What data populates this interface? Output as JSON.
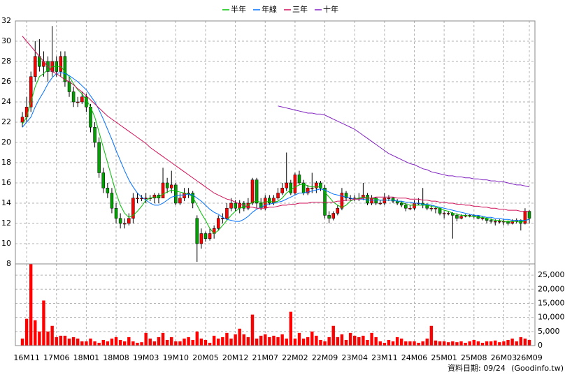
{
  "chart_data": [
    {
      "type": "candlestick",
      "up_color": "#ff0000",
      "down_color": "#00a000",
      "grid": true,
      "ylim": [
        8,
        32
      ],
      "yticks": [
        8,
        10,
        12,
        14,
        16,
        18,
        20,
        22,
        24,
        26,
        28,
        30,
        32
      ],
      "categories": [
        null,
        "16M11",
        null,
        null,
        null,
        null,
        null,
        null,
        "17M06",
        null,
        null,
        null,
        null,
        null,
        null,
        "18M01",
        null,
        null,
        null,
        null,
        null,
        null,
        "18M08",
        null,
        null,
        null,
        null,
        null,
        null,
        "19M03",
        null,
        null,
        null,
        null,
        null,
        null,
        "19M10",
        null,
        null,
        null,
        null,
        null,
        null,
        "20M05",
        null,
        null,
        null,
        null,
        null,
        null,
        "20M12",
        null,
        null,
        null,
        null,
        null,
        null,
        "21M07",
        null,
        null,
        null,
        null,
        null,
        null,
        "22M02",
        null,
        null,
        null,
        null,
        null,
        null,
        "22M09",
        null,
        null,
        null,
        null,
        null,
        null,
        "23M04",
        null,
        null,
        null,
        null,
        null,
        null,
        "23M11",
        null,
        null,
        null,
        null,
        null,
        null,
        "24M06",
        null,
        null,
        null,
        null,
        null,
        null,
        "25M01",
        null,
        null,
        null,
        null,
        null,
        null,
        "25M08",
        null,
        null,
        null,
        null,
        null,
        null,
        "26M03",
        null,
        null,
        null,
        null,
        null,
        "26M09"
      ],
      "open": [
        22,
        22.5,
        23.5,
        26.5,
        28.5,
        27.5,
        28,
        27,
        28,
        27,
        28.5,
        26,
        25,
        24,
        24,
        24.5,
        23.5,
        21.5,
        20,
        17,
        15.5,
        15,
        13.5,
        12.5,
        12,
        12,
        12.5,
        14.5,
        14.5,
        14.5,
        14.5,
        14.5,
        14.8,
        14.5,
        16,
        15.5,
        15.8,
        14,
        14.5,
        15,
        15,
        12.5,
        10,
        11,
        10.5,
        11,
        11.5,
        12.5,
        12.5,
        13.5,
        14,
        13.5,
        14,
        13.5,
        14,
        16.3,
        14,
        13.5,
        14.5,
        14,
        14.5,
        15,
        15.5,
        16,
        15,
        16.8,
        16,
        15,
        15.5,
        15.5,
        16,
        15.5,
        12.8,
        12.5,
        13,
        13.5,
        15,
        14.5,
        14.5,
        14.5,
        14.5,
        14.8,
        14,
        14.5,
        14,
        14,
        14.5,
        14.5,
        14.2,
        14,
        13.8,
        13.5,
        13.5,
        14,
        14,
        13.8,
        13.5,
        13.5,
        13.5,
        13,
        13,
        13,
        12.8,
        12.5,
        12.7,
        12.8,
        12.8,
        12.7,
        12.5,
        12.5,
        12.3,
        12.2,
        12.2,
        12.2,
        12.2,
        12,
        12.2,
        12.3,
        12,
        13.2
      ],
      "high": [
        23,
        24.5,
        27,
        30,
        30.2,
        29,
        28.5,
        31.5,
        28.5,
        29,
        29,
        26.5,
        25.5,
        24.5,
        25,
        24.8,
        23.8,
        22,
        20.5,
        17.5,
        16,
        15.5,
        14,
        13,
        12.5,
        13,
        15,
        15,
        14.8,
        15,
        14.8,
        15,
        15,
        17.5,
        16.5,
        17.2,
        16,
        15,
        15.5,
        15.5,
        15.2,
        12.8,
        11.5,
        11.2,
        11.5,
        11.8,
        12.8,
        13,
        14,
        14.5,
        14.3,
        14.3,
        14.2,
        14.5,
        16.5,
        16.5,
        14.5,
        14.8,
        14.8,
        14.8,
        15.5,
        16,
        19,
        16.3,
        17,
        17.2,
        16.3,
        15.8,
        17,
        16.2,
        16.2,
        15.8,
        13.2,
        13.2,
        13.8,
        15.5,
        15.2,
        14.8,
        14.8,
        15,
        16,
        15,
        14.8,
        14.6,
        14.3,
        15,
        14.8,
        14.6,
        14.4,
        14.2,
        14,
        13.8,
        14.3,
        14.5,
        15.5,
        14,
        13.8,
        13.6,
        13.6,
        13.2,
        13.2,
        13.1,
        13,
        12.9,
        12.9,
        12.9,
        12.9,
        12.8,
        12.7,
        12.6,
        12.5,
        12.4,
        12.4,
        12.4,
        12.3,
        12.4,
        12.5,
        12.4,
        13.5,
        13.3
      ],
      "low": [
        21.5,
        22,
        23,
        26,
        27,
        26.5,
        26,
        26.5,
        26.5,
        26.5,
        25.5,
        24.5,
        23.5,
        23.5,
        23.8,
        23,
        21,
        19.5,
        16.5,
        15,
        14.5,
        13,
        12,
        11.5,
        11.5,
        11.8,
        12,
        14,
        14.2,
        14,
        14.2,
        14,
        14,
        14.5,
        15,
        15,
        13.8,
        13.8,
        14.2,
        14.5,
        13.5,
        8.2,
        9.5,
        10.2,
        10.3,
        10.5,
        11.3,
        12,
        12.3,
        13.2,
        13.2,
        13,
        13.2,
        13.3,
        13.8,
        13.5,
        13.3,
        13.3,
        13.8,
        13.8,
        14.3,
        14.8,
        15.2,
        14.8,
        14.8,
        15.8,
        14.8,
        14.8,
        15,
        15,
        15.2,
        12.5,
        12,
        12.3,
        12.8,
        13.3,
        14.2,
        14.2,
        14.2,
        14.2,
        14.3,
        13.8,
        13.8,
        13.8,
        13.8,
        13.8,
        14.2,
        14,
        13.8,
        13.6,
        13.2,
        13.3,
        13.3,
        13.8,
        13.5,
        13.3,
        13.2,
        13,
        12.8,
        12.5,
        12.8,
        10.5,
        12.2,
        12.4,
        12.6,
        12.6,
        12.5,
        12.4,
        12.3,
        12,
        12,
        11.8,
        12,
        11.8,
        11.8,
        11.9,
        12,
        11.3,
        11.9,
        12
      ],
      "close": [
        22.5,
        23.5,
        26.5,
        28.5,
        27.5,
        28,
        27,
        28,
        27,
        28.5,
        26,
        25,
        24,
        24,
        24.5,
        23.5,
        21.5,
        20,
        17,
        15.5,
        15,
        13.5,
        12.5,
        12,
        12,
        12.5,
        14.5,
        14.5,
        14.5,
        14.5,
        14.5,
        14.8,
        14.5,
        16,
        15.5,
        15.8,
        14,
        14.5,
        15,
        15,
        14,
        10,
        11,
        10.5,
        11,
        11.5,
        12.5,
        12.5,
        13.5,
        14,
        13.5,
        14,
        13.5,
        14,
        16.3,
        14,
        13.5,
        14.5,
        14,
        14.5,
        15,
        15.5,
        16,
        15,
        16.8,
        16,
        15,
        15.5,
        15.5,
        16,
        15.5,
        12.8,
        12.5,
        13,
        13.5,
        15,
        14.5,
        14.5,
        14.5,
        14.5,
        14.8,
        14,
        14.5,
        14,
        14,
        14.5,
        14.5,
        14.2,
        14,
        13.8,
        13.5,
        13.5,
        14,
        14,
        13.8,
        13.5,
        13.5,
        13.5,
        13,
        13,
        13,
        12.8,
        12.5,
        12.7,
        12.8,
        12.8,
        12.7,
        12.5,
        12.5,
        12.3,
        12.2,
        12.2,
        12.2,
        12.2,
        12,
        12.2,
        12.3,
        12,
        13.2,
        12.5
      ],
      "series": [
        {
          "name": "半年",
          "color": "#00c000",
          "values": [
            21.8,
            22.5,
            24,
            25.5,
            26.5,
            26.8,
            27.2,
            27.5,
            27.5,
            27.5,
            27,
            26.5,
            25.8,
            25.2,
            24.8,
            24.2,
            23.5,
            22.5,
            21,
            19.5,
            18,
            16.5,
            15,
            13.8,
            13,
            12.6,
            12.8,
            13.2,
            13.7,
            14.3,
            14.5,
            14.6,
            14.6,
            14.9,
            15.1,
            15.3,
            15.2,
            15.1,
            15,
            14.9,
            14.6,
            13.8,
            13,
            12.3,
            11.5,
            11,
            11.3,
            11.8,
            12.3,
            12.8,
            13.2,
            13.5,
            13.6,
            13.8,
            14.1,
            14.2,
            14.1,
            14.1,
            14.2,
            14.1,
            14.2,
            14.5,
            15,
            15.3,
            15.6,
            15.8,
            15.9,
            15.7,
            15.6,
            15.6,
            15.6,
            15.1,
            14.6,
            14.1,
            13.8,
            13.6,
            13.8,
            14.2,
            14.4,
            14.5,
            14.6,
            14.5,
            14.5,
            14.4,
            14.3,
            14.3,
            14.3,
            14.3,
            14.2,
            14.1,
            13.9,
            13.8,
            13.8,
            13.8,
            13.8,
            13.8,
            13.7,
            13.6,
            13.5,
            13.3,
            13.2,
            13,
            12.9,
            12.8,
            12.8,
            12.7,
            12.7,
            12.6,
            12.6,
            12.5,
            12.4,
            12.3,
            12.3,
            12.2,
            12.2,
            12.2,
            12.2,
            12.1,
            12.3,
            12.4
          ]
        },
        {
          "name": "年線",
          "color": "#0070ff",
          "values": [
            21.5,
            22,
            22.5,
            23.5,
            24.3,
            25,
            25.8,
            26.4,
            26.8,
            26.9,
            26.8,
            26.6,
            26.3,
            26,
            25.6,
            25.2,
            24.6,
            24,
            23.2,
            22.3,
            21.3,
            20.3,
            19.2,
            18.2,
            17.2,
            16.3,
            15.6,
            15,
            14.6,
            14.3,
            14,
            13.8,
            13.8,
            14,
            14.3,
            14.6,
            14.7,
            14.8,
            14.8,
            14.9,
            14.8,
            14.5,
            14.2,
            13.8,
            13.4,
            13.1,
            12.9,
            12.6,
            12.4,
            12.3,
            12.2,
            12.2,
            12.4,
            12.7,
            13.1,
            13.4,
            13.6,
            13.8,
            13.9,
            14,
            14.1,
            14.2,
            14.4,
            14.6,
            14.8,
            15,
            15,
            15.1,
            15.2,
            15.3,
            15.4,
            15.3,
            15.1,
            14.9,
            14.8,
            14.7,
            14.6,
            14.5,
            14.4,
            14.4,
            14.4,
            14.3,
            14.3,
            14.3,
            14.3,
            14.3,
            14.3,
            14.3,
            14.2,
            14.2,
            14.1,
            14.1,
            14,
            14,
            13.9,
            13.9,
            13.8,
            13.7,
            13.6,
            13.5,
            13.4,
            13.3,
            13.2,
            13.1,
            13,
            12.9,
            12.8,
            12.8,
            12.7,
            12.6,
            12.6,
            12.5,
            12.5,
            12.4,
            12.4,
            12.3,
            12.3,
            12.3,
            12.3,
            12.4
          ]
        },
        {
          "name": "三年",
          "color": "#d0105a",
          "values": [
            30.5,
            30,
            29.5,
            29,
            28.5,
            28,
            27.5,
            27,
            26.8,
            26.5,
            26.2,
            26,
            25.7,
            25.3,
            25,
            24.6,
            24.2,
            23.8,
            23.4,
            23,
            22.6,
            22.3,
            22,
            21.7,
            21.4,
            21.1,
            20.8,
            20.5,
            20.2,
            19.9,
            19.5,
            19.2,
            18.9,
            18.6,
            18.3,
            18,
            17.7,
            17.4,
            17.1,
            16.8,
            16.5,
            16.2,
            15.9,
            15.6,
            15.3,
            15,
            14.8,
            14.6,
            14.4,
            14.3,
            14.1,
            13.9,
            13.8,
            13.6,
            13.6,
            13.5,
            13.5,
            13.5,
            13.6,
            13.6,
            13.7,
            13.8,
            13.8,
            13.9,
            13.9,
            14,
            14,
            14,
            14.1,
            14.1,
            14.1,
            14.1,
            14.1,
            14.1,
            14.2,
            14.2,
            14.3,
            14.3,
            14.4,
            14.4,
            14.5,
            14.5,
            14.5,
            14.6,
            14.6,
            14.6,
            14.6,
            14.6,
            14.5,
            14.5,
            14.5,
            14.4,
            14.4,
            14.4,
            14.3,
            14.3,
            14.2,
            14.2,
            14.1,
            14.1,
            14,
            14,
            13.9,
            13.9,
            13.8,
            13.8,
            13.7,
            13.7,
            13.6,
            13.6,
            13.5,
            13.5,
            13.4,
            13.4,
            13.3,
            13.3,
            13.3,
            13.2,
            13.2,
            13.2
          ]
        },
        {
          "name": "十年",
          "color": "#8020c0",
          "values": [
            null,
            null,
            null,
            null,
            null,
            null,
            null,
            null,
            null,
            null,
            null,
            null,
            null,
            null,
            null,
            null,
            null,
            null,
            null,
            null,
            null,
            null,
            null,
            null,
            null,
            null,
            null,
            null,
            null,
            null,
            null,
            null,
            null,
            null,
            null,
            null,
            null,
            null,
            null,
            null,
            null,
            null,
            null,
            null,
            null,
            null,
            null,
            null,
            null,
            null,
            null,
            null,
            null,
            null,
            null,
            null,
            null,
            null,
            null,
            null,
            23.6,
            23.5,
            23.4,
            23.3,
            23.2,
            23.1,
            23,
            22.9,
            22.9,
            22.8,
            22.8,
            22.7,
            22.5,
            22.3,
            22.1,
            21.9,
            21.7,
            21.5,
            21.3,
            21,
            20.7,
            20.4,
            20.1,
            19.8,
            19.5,
            19.2,
            18.9,
            18.7,
            18.5,
            18.3,
            18.1,
            17.9,
            17.8,
            17.6,
            17.4,
            17.3,
            17.1,
            17,
            16.9,
            16.8,
            16.7,
            16.7,
            16.6,
            16.6,
            16.5,
            16.5,
            16.4,
            16.4,
            16.3,
            16.3,
            16.2,
            16.2,
            16.1,
            16.1,
            16,
            15.9,
            15.8,
            15.8,
            15.7,
            15.6
          ]
        }
      ]
    },
    {
      "type": "bar",
      "color": "#ff0000",
      "grid": true,
      "ylim": [
        0,
        29000
      ],
      "yticks": [
        0,
        {
          "value": 5000,
          "label": "5,000"
        },
        {
          "value": 10000,
          "label": "10,000"
        },
        {
          "value": 15000,
          "label": "15,000"
        },
        {
          "value": 20000,
          "label": "20,000"
        },
        {
          "value": 25000,
          "label": "25,000"
        }
      ],
      "values": [
        2500,
        9500,
        29000,
        9000,
        5000,
        16000,
        5000,
        7000,
        3000,
        3500,
        3500,
        2500,
        3000,
        2500,
        1500,
        1500,
        2500,
        1500,
        1000,
        2000,
        1500,
        2500,
        3000,
        2000,
        1500,
        3000,
        1500,
        1000,
        1200,
        4500,
        2500,
        1500,
        3000,
        4500,
        2000,
        3000,
        1500,
        1500,
        2500,
        3000,
        2000,
        5000,
        2500,
        2000,
        1000,
        3500,
        2500,
        3000,
        4500,
        2500,
        4000,
        6000,
        4000,
        3000,
        11000,
        2500,
        3500,
        4000,
        3000,
        3500,
        3000,
        4000,
        2500,
        12000,
        2500,
        4500,
        2500,
        3000,
        5000,
        3500,
        2000,
        1500,
        3000,
        7000,
        3000,
        4000,
        2000,
        4500,
        3500,
        3000,
        3500,
        2000,
        4500,
        3000,
        1500,
        1000,
        2000,
        1500,
        3000,
        2500,
        1500,
        1500,
        1500,
        1000,
        1500,
        2500,
        7000,
        1800,
        1500,
        1500,
        1200,
        1500,
        1200,
        1500,
        1000,
        1500,
        2000,
        1500,
        1000,
        1500,
        1500,
        1800,
        1200,
        1500,
        2000,
        2500,
        1500,
        3000,
        2500,
        2000
      ]
    }
  ],
  "footer": {
    "date": "資料日期: 09/24",
    "source": "(Goodinfo.tw)"
  }
}
